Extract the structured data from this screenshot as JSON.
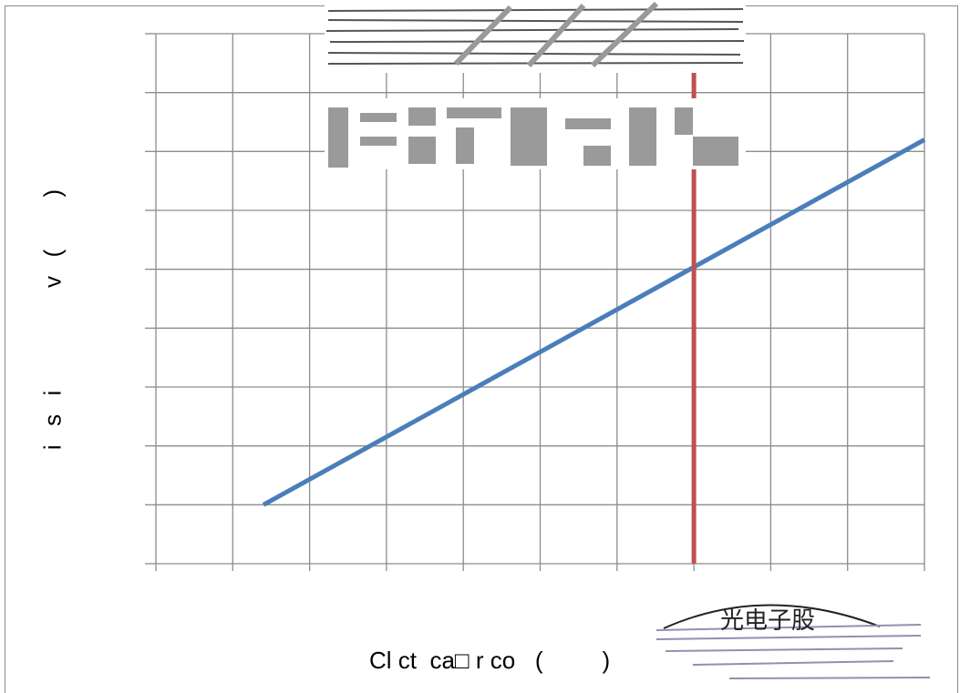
{
  "chart_data": {
    "type": "line",
    "xlabel": "Cl ct  ca□ r co   (         )",
    "ylabel": "i  s  i            v  (      )",
    "x_gridlines": 10,
    "y_gridlines": 9,
    "grid": true,
    "xlim": [
      0,
      10
    ],
    "ylim": [
      0,
      9
    ],
    "series": [
      {
        "x": [
          1.4,
          10
        ],
        "y": [
          1,
          7.2
        ],
        "color": "#4a7ebb"
      }
    ],
    "vline": {
      "x": 7,
      "color": "#c0504d"
    }
  },
  "overlays": {
    "stamp_text": "光电子股"
  }
}
